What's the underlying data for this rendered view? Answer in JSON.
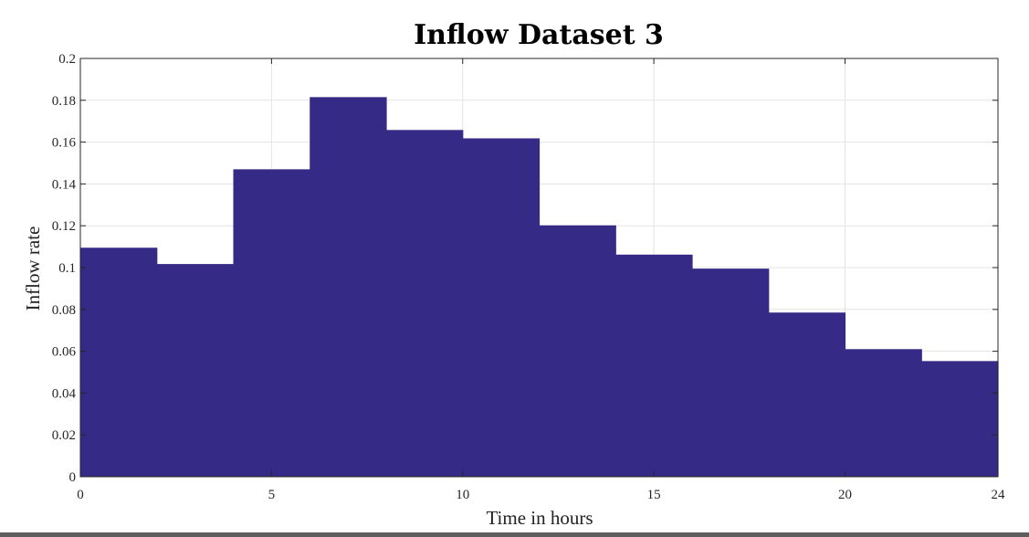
{
  "chart_data": {
    "type": "bar",
    "title": "Inflow Dataset 3",
    "xlabel": "Time in hours",
    "ylabel": "Inflow rate",
    "xlim": [
      0,
      24
    ],
    "ylim": [
      0,
      0.2
    ],
    "grid": true,
    "bar_color": "#352a86",
    "bins": [
      {
        "x_start": 0,
        "x_end": 2,
        "value": 0.1095
      },
      {
        "x_start": 2,
        "x_end": 4,
        "value": 0.1017
      },
      {
        "x_start": 4,
        "x_end": 6,
        "value": 0.147
      },
      {
        "x_start": 6,
        "x_end": 8,
        "value": 0.1815
      },
      {
        "x_start": 8,
        "x_end": 10,
        "value": 0.1658
      },
      {
        "x_start": 10,
        "x_end": 12,
        "value": 0.1618
      },
      {
        "x_start": 12,
        "x_end": 14,
        "value": 0.1202
      },
      {
        "x_start": 14,
        "x_end": 16,
        "value": 0.1062
      },
      {
        "x_start": 16,
        "x_end": 18,
        "value": 0.0995
      },
      {
        "x_start": 18,
        "x_end": 20,
        "value": 0.0785
      },
      {
        "x_start": 20,
        "x_end": 22,
        "value": 0.061
      },
      {
        "x_start": 22,
        "x_end": 24,
        "value": 0.0553
      }
    ],
    "x_ticks": [
      {
        "value": 0,
        "label": "0"
      },
      {
        "value": 5,
        "label": "5"
      },
      {
        "value": 10,
        "label": "10"
      },
      {
        "value": 15,
        "label": "15"
      },
      {
        "value": 20,
        "label": "20"
      },
      {
        "value": 24,
        "label": "24"
      }
    ],
    "y_ticks": [
      {
        "value": 0,
        "label": "0"
      },
      {
        "value": 0.02,
        "label": "0.02"
      },
      {
        "value": 0.04,
        "label": "0.04"
      },
      {
        "value": 0.06,
        "label": "0.06"
      },
      {
        "value": 0.08,
        "label": "0.08"
      },
      {
        "value": 0.1,
        "label": "0.1"
      },
      {
        "value": 0.12,
        "label": "0.12"
      },
      {
        "value": 0.14,
        "label": "0.14"
      },
      {
        "value": 0.16,
        "label": "0.16"
      },
      {
        "value": 0.18,
        "label": "0.18"
      },
      {
        "value": 0.2,
        "label": "0.2"
      }
    ]
  }
}
